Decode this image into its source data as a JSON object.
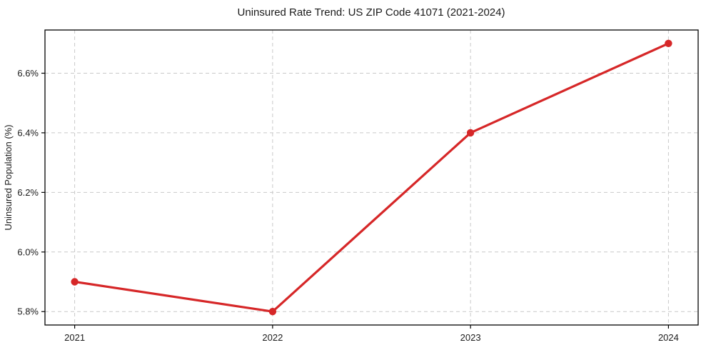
{
  "chart_data": {
    "type": "line",
    "title": "Uninsured Rate Trend: US ZIP Code 41071 (2021-2024)",
    "xlabel": "",
    "ylabel": "Uninsured Population (%)",
    "x": [
      2021,
      2022,
      2023,
      2024
    ],
    "x_tick_labels": [
      "2021",
      "2022",
      "2023",
      "2024"
    ],
    "series": [
      {
        "name": "Uninsured Rate",
        "values": [
          5.9,
          5.8,
          6.4,
          6.7
        ]
      }
    ],
    "y_tick_values": [
      5.8,
      6.0,
      6.2,
      6.4,
      6.6
    ],
    "y_tick_labels": [
      "5.8%",
      "6.0%",
      "6.2%",
      "6.4%",
      "6.6%"
    ],
    "xlim": [
      2020.85,
      2024.15
    ],
    "ylim": [
      5.755,
      6.745
    ],
    "grid": true,
    "grid_style": "dashed",
    "legend": "none",
    "colors": {
      "line": "#d62728",
      "marker": "#d62728",
      "grid": "#c9c9c9",
      "spine": "#000000",
      "text": "#1a1a1a",
      "background": "#ffffff"
    }
  }
}
